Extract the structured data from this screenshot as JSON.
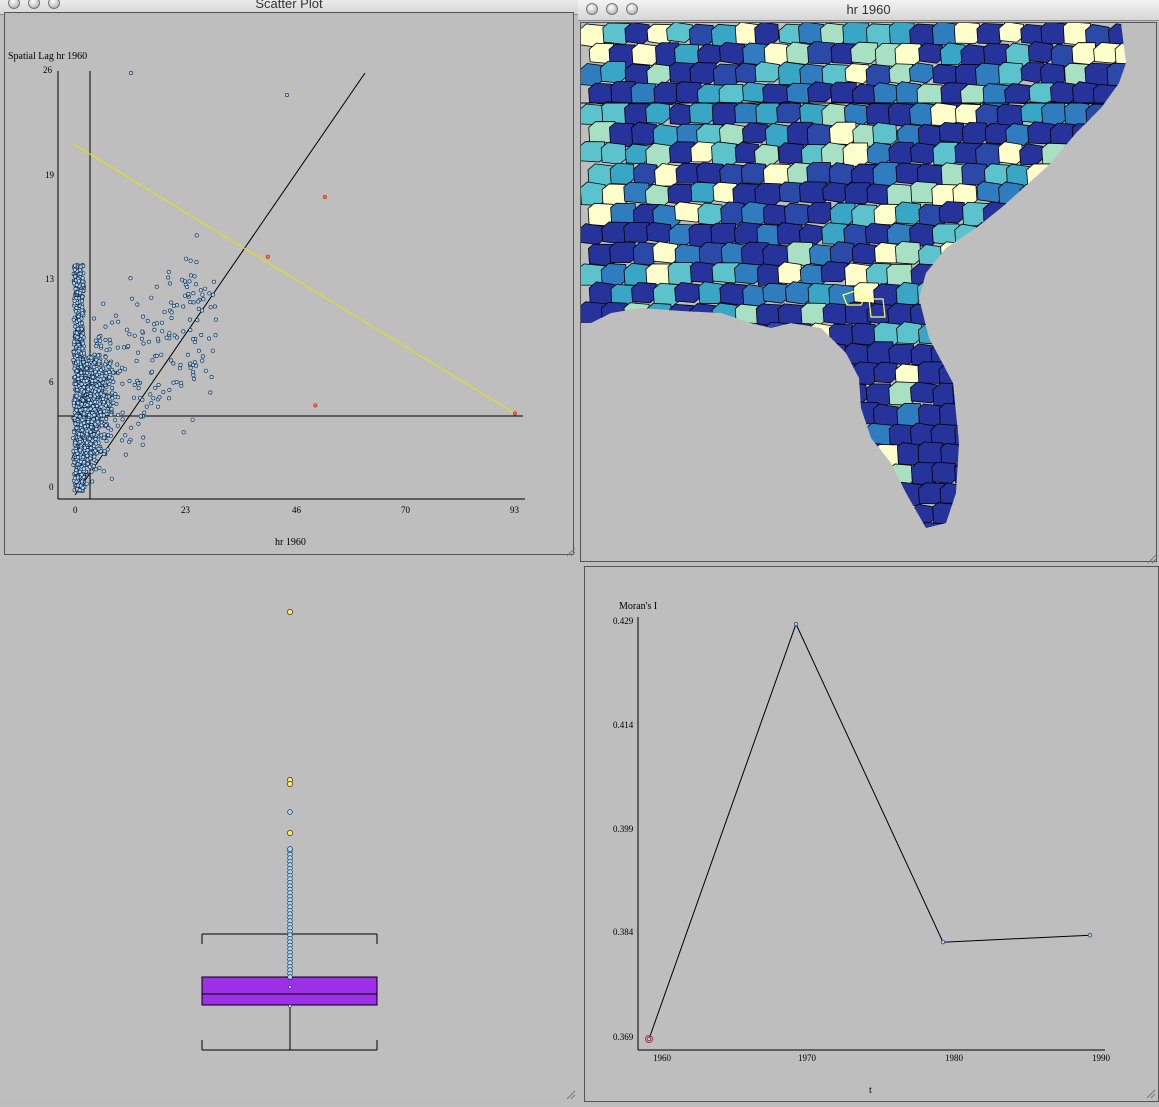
{
  "windows": {
    "scatter": {
      "title": "Scatter Plot"
    },
    "map": {
      "title": "hr 1960"
    }
  },
  "scatter": {
    "ylabel": "Spatial Lag hr 1960",
    "xlabel": "hr 1960",
    "yticks": [
      "26",
      "19",
      "13",
      "6",
      "0"
    ],
    "xticks": [
      "0",
      "23",
      "46",
      "70",
      "93"
    ]
  },
  "line_chart": {
    "ylabel": "Moran's I",
    "xlabel": "t",
    "yticks": [
      "0.429",
      "0.414",
      "0.399",
      "0.384",
      "0.369"
    ],
    "xticks": [
      "1960",
      "1970",
      "1980",
      "1990"
    ]
  },
  "chart_data": [
    {
      "type": "scatter",
      "xlabel": "hr 1960",
      "ylabel": "Spatial Lag hr 1960",
      "xlim": [
        0,
        93
      ],
      "ylim": [
        0,
        26
      ],
      "highlighted_points": [
        {
          "x": 41,
          "y": 14.5
        },
        {
          "x": 53,
          "y": 18.2
        },
        {
          "x": 51,
          "y": 5.3
        },
        {
          "x": 93,
          "y": 4.8
        }
      ],
      "yellow_line": {
        "x": [
          0,
          93
        ],
        "y": [
          21.5,
          4.8
        ]
      }
    },
    {
      "type": "line",
      "x": [
        1960,
        1970,
        1980,
        1990
      ],
      "values": [
        0.369,
        0.429,
        0.383,
        0.384
      ],
      "xlabel": "t",
      "ylabel": "Moran's I",
      "ylim": [
        0.369,
        0.429
      ]
    }
  ]
}
